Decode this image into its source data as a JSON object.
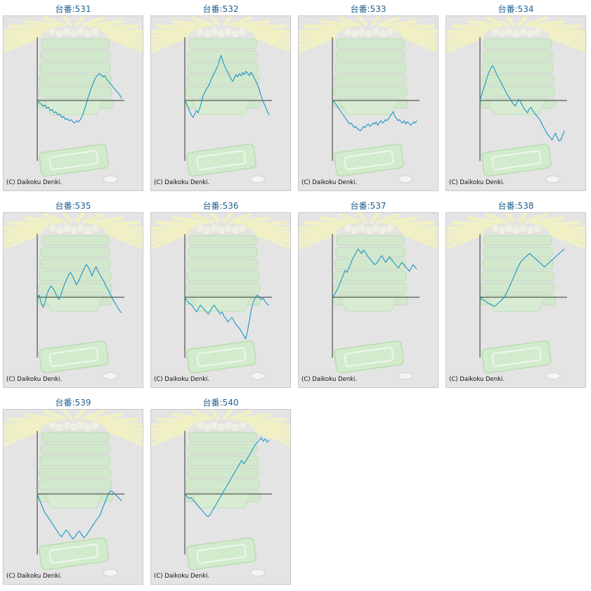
{
  "colors": {
    "line": "#1c95c4",
    "axis": "#333333",
    "title": "#1f5f8f",
    "background": "#e4e4e4"
  },
  "copyright": "(C) Daikoku Denki.",
  "chart_data": [
    {
      "type": "line",
      "title": "台番:531",
      "y": [
        0,
        -4,
        -6,
        -10,
        -8,
        -14,
        -12,
        -18,
        -16,
        -22,
        -20,
        -26,
        -24,
        -30,
        -28,
        -34,
        -32,
        -36,
        -34,
        -38,
        -40,
        -36,
        -38,
        -34,
        -28,
        -18,
        -8,
        4,
        14,
        24,
        32,
        40,
        44,
        48,
        46,
        42,
        44,
        38,
        34,
        30,
        26,
        22,
        18,
        14,
        10,
        4
      ]
    },
    {
      "type": "line",
      "title": "台番:532",
      "y": [
        0,
        -6,
        -12,
        -20,
        -26,
        -30,
        -24,
        -18,
        -22,
        -14,
        -4,
        8,
        14,
        20,
        24,
        30,
        38,
        44,
        50,
        56,
        62,
        72,
        80,
        70,
        62,
        56,
        50,
        44,
        38,
        34,
        40,
        46,
        42,
        48,
        44,
        50,
        46,
        52,
        48,
        44,
        50,
        46,
        40,
        34,
        28,
        20,
        10,
        0,
        -6,
        -12,
        -20,
        -26
      ]
    },
    {
      "type": "line",
      "title": "台番:533",
      "y": [
        0,
        -2,
        -6,
        -10,
        -14,
        -18,
        -22,
        -26,
        -30,
        -34,
        -38,
        -42,
        -40,
        -44,
        -48,
        -46,
        -50,
        -52,
        -54,
        -50,
        -46,
        -48,
        -44,
        -42,
        -46,
        -44,
        -40,
        -42,
        -38,
        -44,
        -40,
        -36,
        -40,
        -38,
        -34,
        -36,
        -32,
        -28,
        -24,
        -20,
        -28,
        -32,
        -36,
        -34,
        -38,
        -40,
        -36,
        -42,
        -38,
        -40,
        -44,
        -42,
        -38,
        -40,
        -36
      ]
    },
    {
      "type": "line",
      "title": "台番:534",
      "y": [
        0,
        10,
        20,
        30,
        40,
        50,
        56,
        62,
        58,
        50,
        44,
        38,
        32,
        26,
        20,
        14,
        8,
        4,
        -2,
        -6,
        -10,
        -4,
        2,
        -2,
        -8,
        -14,
        -18,
        -22,
        -16,
        -12,
        -18,
        -22,
        -26,
        -30,
        -34,
        -40,
        -46,
        -52,
        -58,
        -62,
        -66,
        -70,
        -64,
        -58,
        -66,
        -72,
        -70,
        -62,
        -54
      ]
    },
    {
      "type": "line",
      "title": "台番:535",
      "y": [
        0,
        4,
        -10,
        -18,
        -8,
        6,
        14,
        20,
        16,
        10,
        2,
        -4,
        4,
        14,
        24,
        32,
        40,
        44,
        38,
        30,
        22,
        28,
        36,
        44,
        52,
        58,
        54,
        46,
        38,
        48,
        54,
        46,
        40,
        34,
        28,
        20,
        14,
        8,
        0,
        -6,
        -12,
        -18,
        -24,
        -28
      ]
    },
    {
      "type": "line",
      "title": "台番:536",
      "y": [
        0,
        -6,
        -10,
        -12,
        -16,
        -22,
        -26,
        -20,
        -14,
        -18,
        -22,
        -26,
        -30,
        -24,
        -18,
        -14,
        -20,
        -24,
        -30,
        -26,
        -34,
        -38,
        -44,
        -40,
        -36,
        -42,
        -48,
        -52,
        -56,
        -62,
        -68,
        -74,
        -60,
        -40,
        -20,
        -8,
        0,
        4,
        0,
        -4,
        -2,
        -8,
        -12,
        -14
      ]
    },
    {
      "type": "line",
      "title": "台番:537",
      "y": [
        0,
        4,
        10,
        16,
        24,
        32,
        40,
        48,
        44,
        52,
        60,
        68,
        74,
        80,
        86,
        82,
        78,
        84,
        80,
        74,
        70,
        66,
        62,
        58,
        60,
        64,
        70,
        74,
        68,
        62,
        66,
        72,
        68,
        64,
        60,
        56,
        52,
        58,
        62,
        58,
        54,
        50,
        46,
        52,
        58,
        54,
        50
      ]
    },
    {
      "type": "line",
      "title": "台番:538",
      "y": [
        0,
        -4,
        -6,
        -10,
        -12,
        -14,
        -16,
        -12,
        -8,
        -4,
        2,
        10,
        20,
        30,
        40,
        50,
        60,
        66,
        70,
        74,
        78,
        74,
        70,
        66,
        62,
        58,
        54,
        58,
        62,
        66,
        70,
        74,
        78,
        82,
        86
      ]
    },
    {
      "type": "line",
      "title": "台番:539",
      "y": [
        0,
        -10,
        -20,
        -30,
        -36,
        -42,
        -48,
        -54,
        -60,
        -66,
        -72,
        -76,
        -70,
        -64,
        -68,
        -74,
        -80,
        -76,
        -70,
        -66,
        -72,
        -78,
        -74,
        -68,
        -62,
        -56,
        -50,
        -44,
        -40,
        -30,
        -20,
        -10,
        0,
        6,
        4,
        0,
        -4,
        -8,
        -12
      ]
    },
    {
      "type": "line",
      "title": "台番:540",
      "y": [
        0,
        -4,
        -8,
        -6,
        -10,
        -14,
        -18,
        -22,
        -26,
        -30,
        -34,
        -38,
        -40,
        -36,
        -30,
        -24,
        -18,
        -12,
        -6,
        0,
        6,
        12,
        18,
        24,
        30,
        36,
        42,
        48,
        54,
        60,
        54,
        58,
        64,
        70,
        76,
        82,
        88,
        92,
        96,
        100,
        94,
        98,
        92,
        96
      ]
    }
  ]
}
